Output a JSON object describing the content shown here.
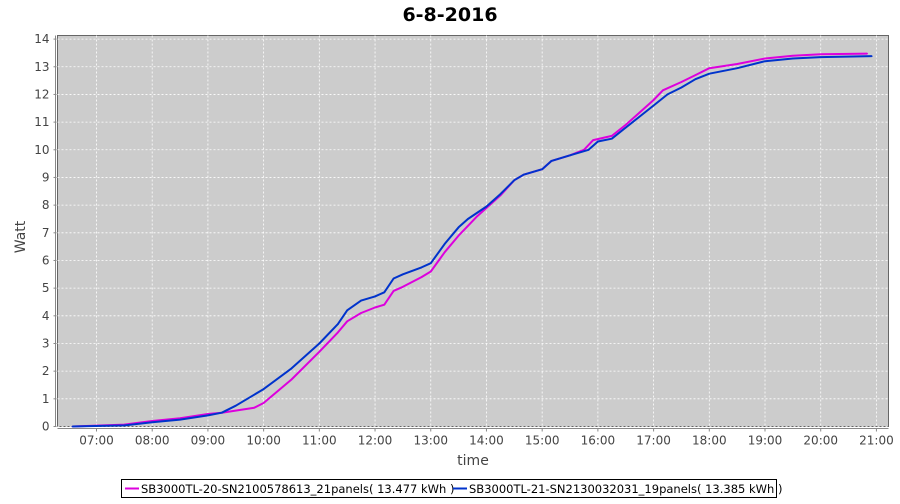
{
  "chart_data": {
    "type": "line",
    "title": "6-8-2016",
    "xlabel": "time",
    "ylabel": "Watt",
    "xlim": [
      "06:18",
      "21:13"
    ],
    "ylim": [
      0,
      14.13
    ],
    "x_ticks": [
      "07:00",
      "08:00",
      "09:00",
      "10:00",
      "11:00",
      "12:00",
      "13:00",
      "14:00",
      "15:00",
      "16:00",
      "17:00",
      "18:00",
      "19:00",
      "20:00",
      "21:00"
    ],
    "y_ticks": [
      0,
      1,
      2,
      3,
      4,
      5,
      6,
      7,
      8,
      9,
      10,
      11,
      12,
      13,
      14
    ],
    "grid": true,
    "legend_position": "bottom",
    "plot_background": "#cccccc",
    "series": [
      {
        "name": "SB3000TL-20-SN2100578613_21panels( 13.477 kWh )",
        "color": "#dd00dd",
        "x": [
          "06:34",
          "07:30",
          "08:00",
          "08:30",
          "09:00",
          "09:15",
          "09:50",
          "10:00",
          "10:30",
          "11:00",
          "11:20",
          "11:30",
          "11:45",
          "12:00",
          "12:10",
          "12:20",
          "12:30",
          "12:50",
          "13:00",
          "13:15",
          "13:30",
          "13:40",
          "13:50",
          "14:00",
          "14:15",
          "14:30",
          "14:40",
          "15:00",
          "15:10",
          "15:30",
          "15:45",
          "15:55",
          "16:15",
          "16:30",
          "17:00",
          "17:10",
          "17:30",
          "17:45",
          "18:00",
          "18:30",
          "19:00",
          "19:30",
          "20:00",
          "20:50"
        ],
        "y": [
          0,
          0.07,
          0.2,
          0.3,
          0.45,
          0.5,
          0.68,
          0.85,
          1.7,
          2.7,
          3.4,
          3.8,
          4.1,
          4.3,
          4.4,
          4.9,
          5.05,
          5.4,
          5.6,
          6.3,
          6.9,
          7.25,
          7.6,
          7.9,
          8.35,
          8.9,
          9.1,
          9.3,
          9.6,
          9.8,
          10.0,
          10.35,
          10.5,
          10.9,
          11.8,
          12.15,
          12.45,
          12.7,
          12.95,
          13.1,
          13.3,
          13.4,
          13.45,
          13.477
        ]
      },
      {
        "name": "SB3000TL-21-SN2130032031_19panels( 13.385 kWh )",
        "color": "#0033cc",
        "x": [
          "06:34",
          "07:30",
          "08:00",
          "08:30",
          "09:00",
          "09:15",
          "09:30",
          "10:00",
          "10:30",
          "11:00",
          "11:20",
          "11:30",
          "11:45",
          "12:00",
          "12:10",
          "12:20",
          "12:30",
          "12:50",
          "13:00",
          "13:15",
          "13:30",
          "13:40",
          "14:00",
          "14:15",
          "14:30",
          "14:40",
          "15:00",
          "15:10",
          "15:30",
          "15:50",
          "16:00",
          "16:15",
          "16:30",
          "17:00",
          "17:15",
          "17:30",
          "17:45",
          "18:00",
          "18:30",
          "19:00",
          "19:30",
          "20:00",
          "20:55"
        ],
        "y": [
          0,
          0.04,
          0.15,
          0.25,
          0.4,
          0.5,
          0.75,
          1.35,
          2.1,
          3.0,
          3.7,
          4.2,
          4.55,
          4.7,
          4.85,
          5.35,
          5.5,
          5.75,
          5.9,
          6.6,
          7.2,
          7.5,
          7.95,
          8.4,
          8.9,
          9.1,
          9.3,
          9.6,
          9.8,
          10.0,
          10.3,
          10.4,
          10.8,
          11.6,
          12.0,
          12.25,
          12.55,
          12.75,
          12.95,
          13.2,
          13.3,
          13.35,
          13.385
        ]
      }
    ]
  }
}
